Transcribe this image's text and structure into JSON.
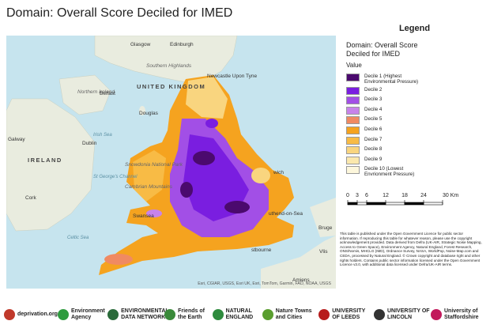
{
  "header": {
    "title": "Domain: Overall Score Deciled for IMED"
  },
  "map": {
    "labels": [
      {
        "text": "Glasgow",
        "kind": "city"
      },
      {
        "text": "Edinburgh",
        "kind": "city"
      },
      {
        "text": "Southern Highlands",
        "kind": "region"
      },
      {
        "text": "UNITED KINGDOM",
        "kind": "country"
      },
      {
        "text": "Newcastle Upon Tyne",
        "kind": "city"
      },
      {
        "text": "Northern Ireland",
        "kind": "region"
      },
      {
        "text": "Belfast",
        "kind": "city"
      },
      {
        "text": "Douglas",
        "kind": "city"
      },
      {
        "text": "Irish Sea",
        "kind": "sea"
      },
      {
        "text": "Galway",
        "kind": "city"
      },
      {
        "text": "Dublin",
        "kind": "city"
      },
      {
        "text": "IRELAND",
        "kind": "country"
      },
      {
        "text": "St George's Channel",
        "kind": "sea"
      },
      {
        "text": "Snowdonia National Park",
        "kind": "region"
      },
      {
        "text": "Cambrian Mountains",
        "kind": "region"
      },
      {
        "text": "Cork",
        "kind": "city"
      },
      {
        "text": "Swansea",
        "kind": "city"
      },
      {
        "text": "Celtic Sea",
        "kind": "sea"
      },
      {
        "text": "wich",
        "kind": "city"
      },
      {
        "text": "uthend-on-Sea",
        "kind": "city"
      },
      {
        "text": "Bruge",
        "kind": "city"
      },
      {
        "text": "Vlis",
        "kind": "city"
      },
      {
        "text": "stbourne",
        "kind": "city"
      },
      {
        "text": "Amiens",
        "kind": "city"
      }
    ],
    "attribution": "Esri, CGIAR, USGS, Esri UK, Esri, TomTom, Garmin, FAO, NOAA, USGS"
  },
  "legend": {
    "title": "Legend",
    "layer": "Domain: Overall Score Deciled for IMED",
    "field": "Value",
    "items": [
      {
        "label": "Decile 1 (Highest Environmental Pressure)",
        "color": "#4b0a6e"
      },
      {
        "label": "Decile 2",
        "color": "#7a1ee0"
      },
      {
        "label": "Decile 3",
        "color": "#a24fe6"
      },
      {
        "label": "Decile 4",
        "color": "#c783ea"
      },
      {
        "label": "Decile 5",
        "color": "#f08a62"
      },
      {
        "label": "Decile 6",
        "color": "#f5a31f"
      },
      {
        "label": "Decile 7",
        "color": "#f8bb45"
      },
      {
        "label": "Decile 8",
        "color": "#f9d57f"
      },
      {
        "label": "Decile 9",
        "color": "#fbe8ad"
      },
      {
        "label": "Decile 10 (Lowest Envrionment Pressure)",
        "color": "#fdf7dc"
      }
    ],
    "scale": [
      "0",
      "3",
      "6",
      "12",
      "18",
      "24",
      "30 Km"
    ]
  },
  "notice": "This table is published under the Open Government Licence for public sector information. If reproducing this table for whatever reason, please use the copyright acknowledgement provided. Data derived from Defra (UK-AIR, Strategic Noise Mapping, Access to Green Space), Environment Agency, Natural England, Forest Research, ONS/Nomis, MHCLG (IMD), Ordnance Survey, NASA, WorldPop, Noise-Map.com and CEDA, processed by Natural England. © Crown copyright and database right and other rights holders. Contains public sector information licensed under the Open Government Licence v3.0, with additional data licensed under Defra/UK-AIR terms.",
  "footer": {
    "logos": [
      "deprivation.org",
      "Environment Agency",
      "ENVIRONMENTAL DATA NETWORK",
      "Friends of the Earth",
      "NATURAL ENGLAND",
      "Nature Towns and Cities",
      "UNIVERSITY OF LEEDS",
      "UNIVERSITY OF LINCOLN",
      "University of Staffordshire"
    ]
  }
}
